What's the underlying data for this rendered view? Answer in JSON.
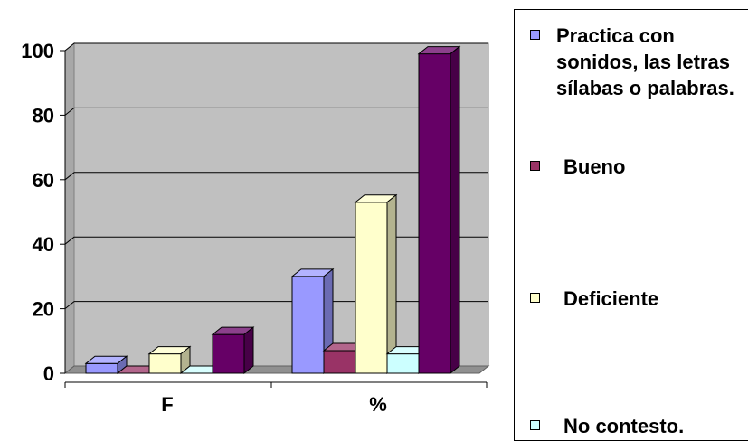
{
  "chart_data": {
    "type": "bar",
    "categories": [
      "F",
      "%"
    ],
    "series": [
      {
        "name": "Practica con sonidos, las letras sílabas o palabras.",
        "color": "#9999ff",
        "values": [
          3,
          30
        ]
      },
      {
        "name": "Bueno",
        "color": "#993366",
        "values": [
          0,
          7
        ]
      },
      {
        "name": "Deficiente",
        "color": "#ffffcc",
        "values": [
          6,
          53
        ]
      },
      {
        "name": "No contesto.",
        "color": "#ccffff",
        "values": [
          0,
          6
        ]
      },
      {
        "name": "",
        "color": "#660066",
        "values": [
          12,
          99
        ]
      }
    ],
    "ylim": [
      0,
      100
    ],
    "yticks": [
      "0",
      "20",
      "40",
      "60",
      "80",
      "100"
    ],
    "grid": true,
    "legend_position": "right"
  },
  "legend": {
    "items": [
      {
        "label": "Practica con sonidos, las letras sílabas o palabras.",
        "color": "#9999ff"
      },
      {
        "label": "Bueno",
        "color": "#993366"
      },
      {
        "label": "Deficiente",
        "color": "#ffffcc"
      },
      {
        "label": "No contesto.",
        "color": "#ccffff"
      }
    ]
  }
}
